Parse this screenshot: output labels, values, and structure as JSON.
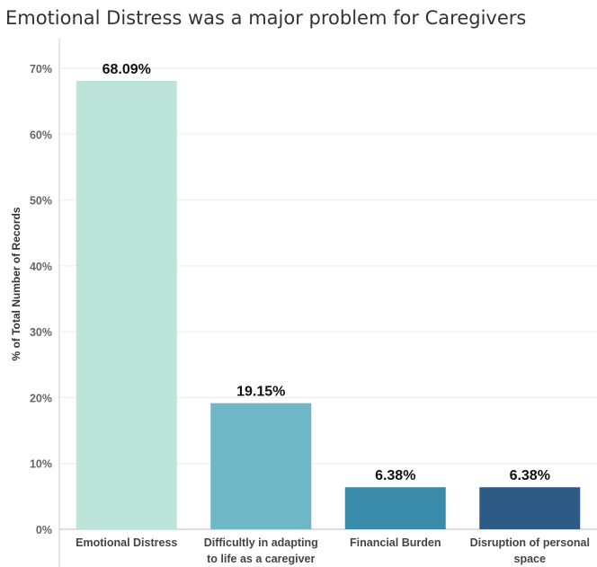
{
  "chart_data": {
    "type": "bar",
    "title": "Emotional Distress was a major problem for Caregivers",
    "ylabel": "% of Total Number of Records",
    "xlabel": "",
    "ylim": [
      0,
      70
    ],
    "yticks": [
      0,
      10,
      20,
      30,
      40,
      50,
      60,
      70
    ],
    "ytick_labels": [
      "0%",
      "10%",
      "20%",
      "30%",
      "40%",
      "50%",
      "60%",
      "70%"
    ],
    "grid": true,
    "categories": [
      [
        "Emotional Distress"
      ],
      [
        "Difficultly in adapting",
        "to life as a caregiver"
      ],
      [
        "Financial Burden"
      ],
      [
        "Disruption of personal",
        "space"
      ]
    ],
    "values": [
      68.09,
      19.15,
      6.38,
      6.38
    ],
    "value_labels": [
      "68.09%",
      "19.15%",
      "6.38%",
      "6.38%"
    ],
    "colors": [
      "#bde4d9",
      "#6fb7c4",
      "#3a8aa9",
      "#2d5b86"
    ]
  }
}
